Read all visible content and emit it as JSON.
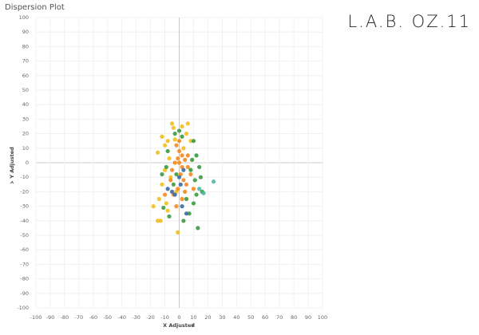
{
  "chart_data": {
    "type": "scatter",
    "title": "Dispersion Plot",
    "brand": "L.A.B. OZ.11",
    "xlabel": "X Adjusted",
    "ylabel": "Y Adjusted",
    "xlim": [
      -100,
      100
    ],
    "ylim": [
      -100,
      100
    ],
    "xticks": [
      -100,
      -90,
      -80,
      -70,
      -60,
      -50,
      -40,
      -30,
      -20,
      -10,
      0,
      10,
      20,
      30,
      40,
      50,
      60,
      70,
      80,
      90,
      100
    ],
    "yticks": [
      -100,
      -90,
      -80,
      -70,
      -60,
      -50,
      -40,
      -30,
      -20,
      -10,
      0,
      10,
      20,
      30,
      40,
      50,
      60,
      70,
      80,
      90,
      100
    ],
    "grid": true,
    "series": [
      {
        "color": "#f2be1c",
        "x": [
          -15,
          -12,
          -10,
          -8,
          -5,
          -4,
          -3,
          -7,
          -10,
          -12,
          -14,
          -18,
          -15,
          -13,
          -8,
          -2,
          2,
          6,
          5,
          -1,
          -6,
          3,
          -9,
          8
        ],
        "y": [
          7,
          18,
          12,
          15,
          27,
          24,
          16,
          3,
          -5,
          -15,
          -25,
          -30,
          -40,
          -40,
          -33,
          -20,
          25,
          27,
          20,
          -48,
          -10,
          10,
          -28,
          15
        ]
      },
      {
        "color": "#f5891f",
        "x": [
          -2,
          0,
          2,
          4,
          -3,
          -5,
          1,
          3,
          5,
          -1,
          -4,
          2,
          6,
          8,
          0,
          -6,
          4,
          -2,
          -10,
          10,
          6,
          -1,
          2,
          0
        ],
        "y": [
          12,
          8,
          5,
          2,
          0,
          -5,
          -8,
          -12,
          -15,
          -18,
          -22,
          -25,
          -3,
          -8,
          0,
          -12,
          -20,
          -30,
          -22,
          -18,
          5,
          3,
          -3,
          15
        ]
      },
      {
        "color": "#3a9a3f",
        "x": [
          -12,
          -8,
          -3,
          2,
          10,
          12,
          14,
          15,
          12,
          10,
          7,
          13,
          -7,
          -9,
          5,
          8,
          -4,
          0,
          3,
          16,
          9,
          -2,
          11,
          -11
        ],
        "y": [
          -8,
          8,
          20,
          18,
          15,
          5,
          -3,
          -10,
          -22,
          -28,
          -35,
          -45,
          -37,
          -3,
          -25,
          -5,
          -15,
          22,
          -40,
          -20,
          2,
          -8,
          -12,
          -31
        ]
      },
      {
        "color": "#3b6aa8",
        "x": [
          -5,
          -3,
          0,
          2,
          5,
          -8,
          3,
          1
        ],
        "y": [
          -20,
          -22,
          -10,
          -30,
          -35,
          -18,
          -5,
          -15
        ]
      },
      {
        "color": "#4fb8a2",
        "x": [
          24,
          17,
          14
        ],
        "y": [
          -13,
          -21,
          -18
        ]
      }
    ]
  }
}
